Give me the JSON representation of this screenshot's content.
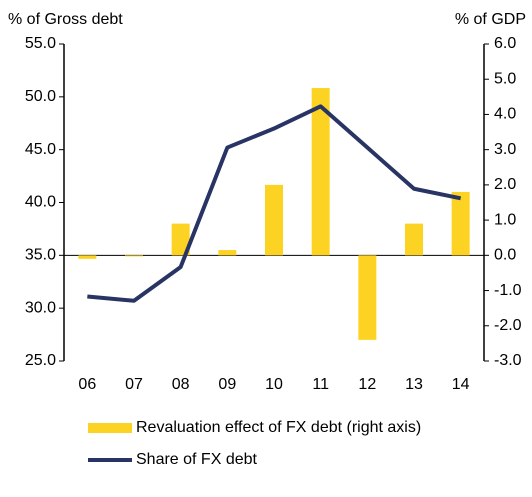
{
  "chart_data": {
    "type": "bar-line",
    "y_label": "% of Gross debt",
    "y2_label": "% of GDP",
    "categories": [
      "06",
      "07",
      "08",
      "09",
      "10",
      "11",
      "12",
      "13",
      "14"
    ],
    "series": [
      {
        "name": "Revaluation effect of FX debt (right axis)",
        "kind": "bar",
        "axis": "y2",
        "color": "#fdd323",
        "values": [
          -0.1,
          -0.03,
          0.9,
          0.15,
          2.0,
          4.75,
          -2.4,
          0.9,
          1.8
        ]
      },
      {
        "name": "Share of FX debt",
        "kind": "line",
        "color": "#283464",
        "values": [
          31.1,
          30.7,
          33.9,
          45.2,
          47.0,
          49.1,
          45.2,
          41.3,
          40.4
        ]
      }
    ],
    "ylim": [
      25,
      55
    ],
    "yticks": [
      {
        "value": 25,
        "label": "25.0"
      },
      {
        "value": 30,
        "label": "30.0"
      },
      {
        "value": 35,
        "label": "35.0"
      },
      {
        "value": 40,
        "label": "40.0"
      },
      {
        "value": 45,
        "label": "45.0"
      },
      {
        "value": 50,
        "label": "50.0"
      },
      {
        "value": 55,
        "label": "55.0"
      }
    ],
    "y2lim": [
      -3,
      6
    ],
    "y2ticks": [
      {
        "value": -3,
        "label": "-3.0"
      },
      {
        "value": -2,
        "label": "-2.0"
      },
      {
        "value": -1,
        "label": "-1.0"
      },
      {
        "value": 0,
        "label": "0.0"
      },
      {
        "value": 1,
        "label": "1.0"
      },
      {
        "value": 2,
        "label": "2.0"
      },
      {
        "value": 3,
        "label": "3.0"
      },
      {
        "value": 4,
        "label": "4.0"
      },
      {
        "value": 5,
        "label": "5.0"
      },
      {
        "value": 6,
        "label": "6.0"
      }
    ]
  }
}
